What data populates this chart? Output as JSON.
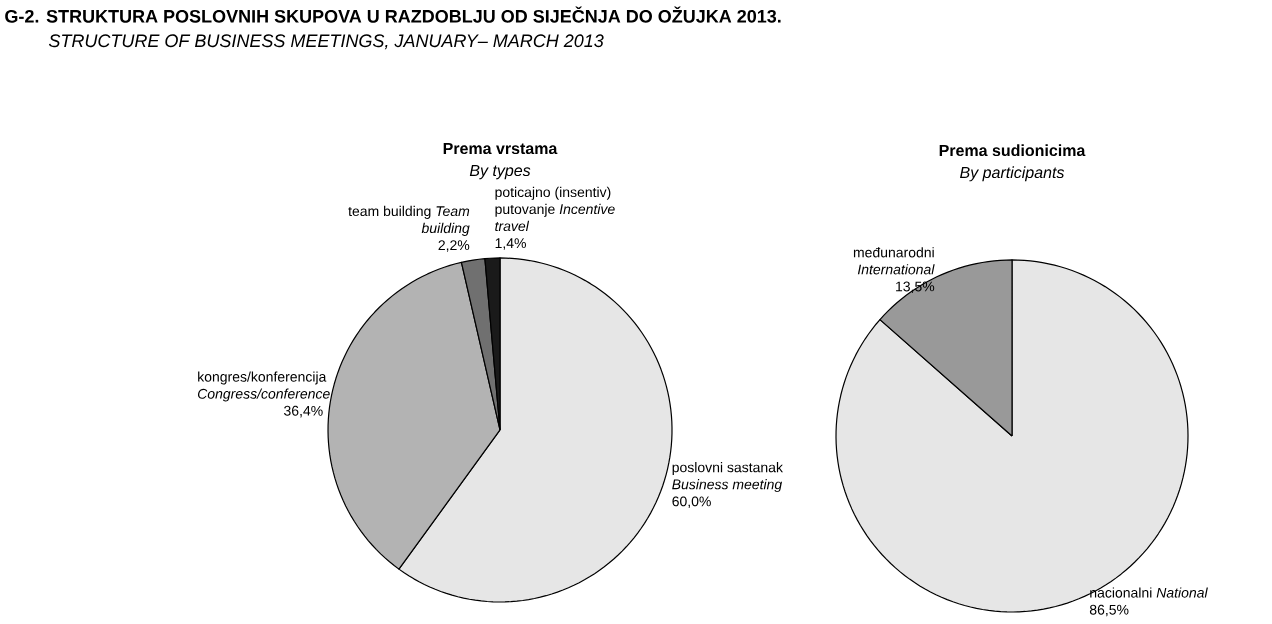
{
  "chart_data": [
    {
      "type": "pie",
      "title": "Prema vrstama",
      "subtitle": "By types",
      "annotations": [
        "G-2. STRUKTURA POSLOVNIH SKUPOVA U RAZDOBLJU OD SIJEČNJA DO OŽUJKA 2013.",
        "STRUCTURE OF BUSINESS MEETINGS, JANUARY– MARCH 2013"
      ],
      "categories": [
        "poslovni sastanak *Business meeting*",
        "kongres/konferencija *Congress/conference*",
        "team building *Team building*",
        "poticajno (insentiv) putovanje *Incentive travel*"
      ],
      "values": [
        60.0,
        36.4,
        2.2,
        1.4
      ],
      "value_labels": [
        "60,0%",
        "36,4%",
        "2,2%",
        "1,4%"
      ],
      "colors": [
        "#e6e6e6",
        "#b3b3b3",
        "#707070",
        "#1a1a1a"
      ]
    },
    {
      "type": "pie",
      "title": "Prema sudionicima",
      "subtitle": "By participants",
      "categories": [
        "nacionalni *National*",
        "međunarodni *International*"
      ],
      "values": [
        86.5,
        13.5
      ],
      "value_labels": [
        "86,5%",
        "13,5%"
      ],
      "colors": [
        "#e6e6e6",
        "#999999"
      ]
    }
  ]
}
